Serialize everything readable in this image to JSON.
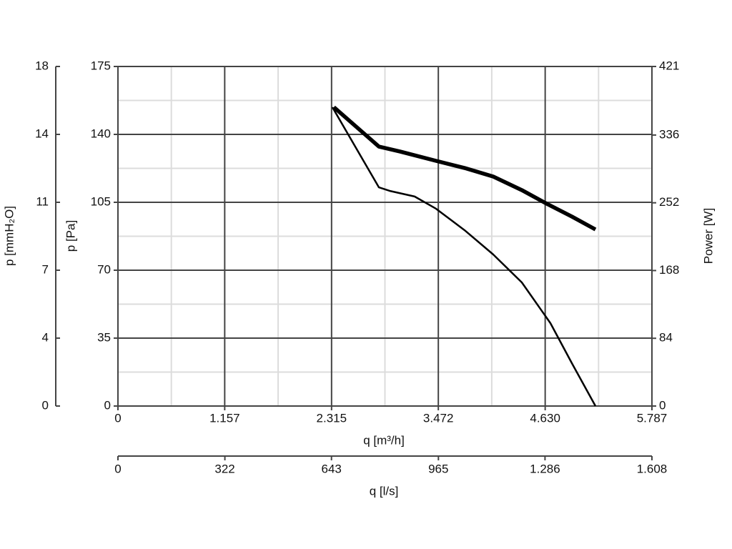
{
  "chart_data": {
    "type": "line",
    "grid": true,
    "minor_grid": true,
    "xlabel": "q [m³/h]",
    "xlim": [
      0,
      5787
    ],
    "xticks": [
      0,
      {
        "value": 1157,
        "label": "1.157"
      },
      {
        "value": 2315,
        "label": "2.315"
      },
      {
        "value": 3472,
        "label": "3.472"
      },
      {
        "value": 4630,
        "label": "4.630"
      },
      {
        "value": 5787,
        "label": "5.787"
      }
    ],
    "x2label": "q [l/s]",
    "x2lim": [
      0,
      1608
    ],
    "x2ticks": [
      0,
      322,
      643,
      965,
      {
        "value": 1286,
        "label": "1.286"
      },
      {
        "value": 1608,
        "label": "1.608"
      }
    ],
    "ylabel": "p [Pa]",
    "ylim": [
      0,
      175
    ],
    "yticks": [
      0,
      35,
      70,
      105,
      140,
      175
    ],
    "y3label": "p [mmH₂O]",
    "y3lim": [
      0,
      17.85
    ],
    "y3ticks": [
      0,
      {
        "value": 3.57,
        "label": "4"
      },
      {
        "value": 7.14,
        "label": "7"
      },
      {
        "value": 10.71,
        "label": "11"
      },
      {
        "value": 14.28,
        "label": "14"
      },
      {
        "value": 17.85,
        "label": "18"
      }
    ],
    "y2label": "Power [W]",
    "y2lim": [
      0,
      421
    ],
    "y2ticks": [
      0,
      84,
      168,
      252,
      336,
      421
    ],
    "series": [
      {
        "color": "#000000",
        "line_width": 2.5,
        "x": [
          2324,
          2828,
          2944,
          3215,
          3447,
          3757,
          4067,
          4377,
          4687,
          4919,
          5175
        ],
        "values": [
          154,
          112.7,
          110.9,
          108,
          101.7,
          90.6,
          78.1,
          63.7,
          42.7,
          22.1,
          0
        ]
      },
      {
        "color": "#000000",
        "line_width": 5.5,
        "axis": "y2",
        "x": [
          2340,
          2828,
          3060,
          3447,
          3757,
          4067,
          4377,
          4648,
          4919,
          5175
        ],
        "values": [
          370.5,
          321.7,
          315.5,
          304,
          295.1,
          284.5,
          267.7,
          250.8,
          234.9,
          218.9
        ]
      }
    ]
  }
}
